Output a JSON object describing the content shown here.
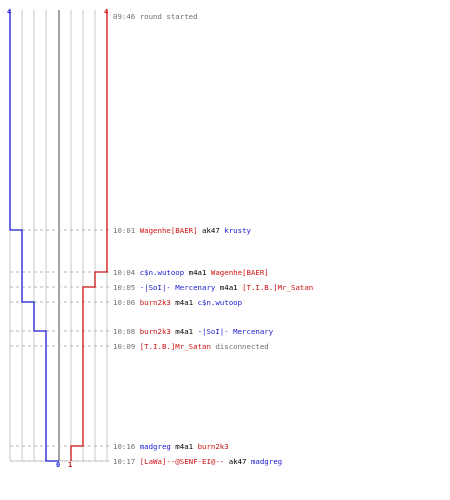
{
  "teams": [
    {
      "name": "blue",
      "color": "#1a1ad2",
      "start_count": "4",
      "end_count": "0"
    },
    {
      "name": "red",
      "color": "#cc1111",
      "start_count": "4",
      "end_count": "1"
    }
  ],
  "colors": {
    "time": "#707070",
    "neutral_text": "#000000",
    "system_text": "#707070",
    "grid": "#c8c8c8",
    "center_line": "#666666",
    "dash": "#b4b4b4"
  },
  "events": [
    {
      "time": "09:46",
      "parts": [
        {
          "text": "round started",
          "role": "system"
        }
      ]
    },
    {
      "time": "10:01",
      "parts": [
        {
          "text": "Wagenhe[BAER]",
          "role": "red"
        },
        {
          "text": " ak47 ",
          "role": "neutral"
        },
        {
          "text": "krusty",
          "role": "blue"
        }
      ]
    },
    {
      "time": "10:04",
      "parts": [
        {
          "text": "c$n.wutoop",
          "role": "blue"
        },
        {
          "text": " m4a1 ",
          "role": "neutral"
        },
        {
          "text": "Wagenhe[BAER]",
          "role": "red"
        }
      ]
    },
    {
      "time": "10:05",
      "parts": [
        {
          "text": "-|SoI|- Mercenary",
          "role": "blue"
        },
        {
          "text": " m4a1 ",
          "role": "neutral"
        },
        {
          "text": "[T.I.B.]Mr_Satan",
          "role": "red"
        }
      ]
    },
    {
      "time": "10:06",
      "parts": [
        {
          "text": "burn2k3",
          "role": "red"
        },
        {
          "text": " m4a1 ",
          "role": "neutral"
        },
        {
          "text": "c$n.wutoop",
          "role": "blue"
        }
      ]
    },
    {
      "time": "10:08",
      "parts": [
        {
          "text": "burn2k3",
          "role": "red"
        },
        {
          "text": " m4a1 ",
          "role": "neutral"
        },
        {
          "text": "-|SoI|- Mercenary",
          "role": "blue"
        }
      ]
    },
    {
      "time": "10:09",
      "parts": [
        {
          "text": "[T.I.B.]Mr_Satan",
          "role": "red"
        },
        {
          "text": " disconnected",
          "role": "system"
        }
      ]
    },
    {
      "time": "10:16",
      "parts": [
        {
          "text": "madgreg",
          "role": "blue"
        },
        {
          "text": " m4a1 ",
          "role": "neutral"
        },
        {
          "text": "burn2k3",
          "role": "red"
        }
      ]
    },
    {
      "time": "10:17",
      "parts": [
        {
          "text": "[LaWa]--@SENF-EI@--",
          "role": "red"
        },
        {
          "text": " ak47 ",
          "role": "neutral"
        },
        {
          "text": "madgreg",
          "role": "blue"
        }
      ]
    }
  ]
}
